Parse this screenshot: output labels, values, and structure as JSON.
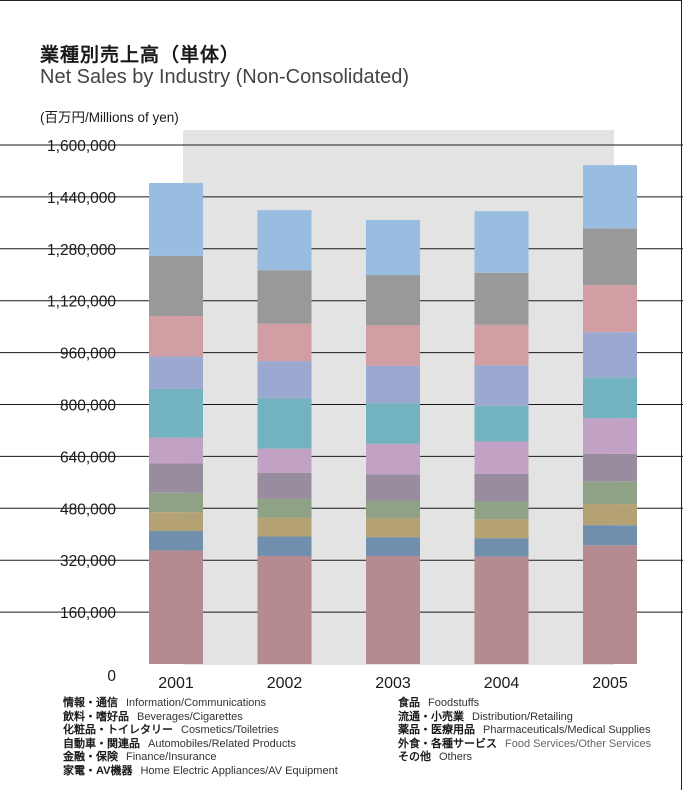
{
  "title_jp": "業種別売上高（単体）",
  "title_en": "Net Sales by Industry (Non-Consolidated)",
  "unit_label": "(百万円/Millions of yen)",
  "chart_data": {
    "type": "bar",
    "stacked": true,
    "categories": [
      "2001",
      "2002",
      "2003",
      "2004",
      "2005"
    ],
    "ylim": [
      0,
      1600000
    ],
    "yticks": [
      0,
      160000,
      320000,
      480000,
      640000,
      800000,
      960000,
      1120000,
      1280000,
      1440000,
      1600000
    ],
    "ytick_labels": [
      "0",
      "160,000",
      "320,000",
      "480,000",
      "640,000",
      "800,000",
      "960,000",
      "1,120,000",
      "1,280,000",
      "1,440,000",
      "1,600,000"
    ],
    "grid": false,
    "series": [
      {
        "key": "others",
        "color": "#b58a90",
        "values": [
          350000,
          333000,
          333000,
          331000,
          366000
        ]
      },
      {
        "key": "home",
        "color": "#6f8fad",
        "values": [
          60000,
          60000,
          58000,
          57000,
          62000
        ]
      },
      {
        "key": "finance",
        "color": "#b5a274",
        "values": [
          58000,
          58000,
          58000,
          58000,
          65000
        ]
      },
      {
        "key": "auto",
        "color": "#8fa285",
        "values": [
          60000,
          58000,
          55000,
          55000,
          70000
        ]
      },
      {
        "key": "cosmetics",
        "color": "#978d9e",
        "values": [
          90000,
          80000,
          80000,
          85000,
          85000
        ]
      },
      {
        "key": "beverages",
        "color": "#c1a1c4",
        "values": [
          80000,
          75000,
          95000,
          100000,
          110000
        ]
      },
      {
        "key": "info",
        "color": "#72b3bf",
        "values": [
          150000,
          155000,
          125000,
          110000,
          125000
        ]
      },
      {
        "key": "foodstuffs",
        "color": "#9ba8cf",
        "values": [
          100000,
          115000,
          115000,
          125000,
          140000
        ]
      },
      {
        "key": "distribution",
        "color": "#d19ea4",
        "values": [
          125000,
          115000,
          125000,
          125000,
          145000
        ]
      },
      {
        "key": "pharma",
        "color": "#999999",
        "values": [
          185000,
          165000,
          155000,
          160000,
          175000
        ]
      },
      {
        "key": "food_services",
        "color": "#98bde0",
        "values": [
          225000,
          185000,
          170000,
          190000,
          195000
        ]
      }
    ]
  },
  "legend_left": [
    {
      "jp": "情報・通信",
      "en": "Information/Communications"
    },
    {
      "jp": "飲料・嗜好品",
      "en": "Beverages/Cigarettes"
    },
    {
      "jp": "化粧品・トイレタリー",
      "en": "Cosmetics/Toiletries"
    },
    {
      "jp": "自動車・関連品",
      "en": "Automobiles/Related Products"
    },
    {
      "jp": "金融・保険",
      "en": "Finance/Insurance"
    },
    {
      "jp": "家電・AV機器",
      "en": "Home Electric Appliances/AV Equipment"
    }
  ],
  "legend_right": [
    {
      "jp": "食品",
      "en": "Foodstuffs"
    },
    {
      "jp": "流通・小売業",
      "en": "Distribution/Retailing"
    },
    {
      "jp": "薬品・医療用品",
      "en": "Pharmaceuticals/Medical Supplies"
    },
    {
      "jp": "外食・各種サービス",
      "en": "Food Services/Other Services"
    },
    {
      "jp": "その他",
      "en": "Others"
    }
  ]
}
